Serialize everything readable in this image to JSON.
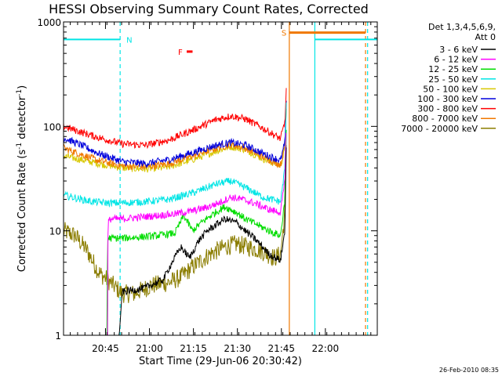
{
  "chart_data": {
    "type": "line",
    "title": "HESSI Observing Summary Count Rates, Corrected",
    "xlabel": "Start Time (29-Jun-06 20:30:42)",
    "ylabel_main": "Corrected Count Rate (s",
    "ylabel_sup1": "-1",
    "ylabel_mid": " detector",
    "ylabel_sup2": "-1",
    "ylabel_end": ")",
    "yscale": "log",
    "ylim": [
      1,
      1000
    ],
    "xlim_minutes": [
      0,
      107
    ],
    "x_ticks": [
      {
        "label": "20:45",
        "minutes": 14.3
      },
      {
        "label": "21:00",
        "minutes": 29.3
      },
      {
        "label": "21:15",
        "minutes": 44.3
      },
      {
        "label": "21:30",
        "minutes": 59.3
      },
      {
        "label": "21:45",
        "minutes": 74.3
      },
      {
        "label": "22:00",
        "minutes": 89.3
      }
    ],
    "y_ticks": [
      {
        "label": "1",
        "value": 1
      },
      {
        "label": "10",
        "value": 10
      },
      {
        "label": "100",
        "value": 100
      },
      {
        "label": "1000",
        "value": 1000
      }
    ],
    "legend_title": [
      "Det 1,3,4,5,6,9,",
      "Att 0"
    ],
    "legend_position": "right",
    "footer_date": "26-Feb-2010 08:35",
    "flags": [
      {
        "label": "N",
        "color": "#00e5e5",
        "bars": [
          [
            0,
            19.3
          ],
          [
            85.7,
            107
          ]
        ],
        "level": 680
      },
      {
        "label": "S",
        "color": "#f07800",
        "bars": [
          [
            77,
            103
          ]
        ],
        "level": 790
      },
      {
        "label": "F",
        "color": "#ff0000",
        "bars": [
          [
            42,
            44
          ]
        ],
        "level": 520
      }
    ],
    "vlines": [
      {
        "minutes": 19.3,
        "color": "#00e5e5",
        "style": "dashed"
      },
      {
        "minutes": 77.0,
        "color": "#f07800",
        "style": "solid"
      },
      {
        "minutes": 85.7,
        "color": "#00e5e5",
        "style": "solid"
      },
      {
        "minutes": 103.0,
        "color": "#f07800",
        "style": "dashed"
      },
      {
        "minutes": 103.7,
        "color": "#00e5e5",
        "style": "dashed"
      }
    ],
    "series": [
      {
        "name": "3 - 6 keV",
        "color": "#000000",
        "x": [
          0,
          15,
          19,
          20,
          27,
          34,
          37,
          40,
          43,
          46,
          49,
          55,
          59,
          62,
          66,
          70,
          74,
          75.5,
          76
        ],
        "y": [
          1,
          1,
          1,
          2.6,
          2.8,
          3.4,
          5,
          7,
          5.5,
          8,
          10,
          13,
          12,
          10,
          8,
          6,
          5.2,
          10,
          80
        ]
      },
      {
        "name": "6 - 12 keV",
        "color": "#ff00ff",
        "x": [
          15,
          15.2,
          16,
          20,
          26,
          32,
          38,
          41,
          44,
          48,
          53,
          57,
          61,
          66,
          70,
          74,
          75.5,
          76
        ],
        "y": [
          1,
          12,
          13,
          13,
          13.5,
          14,
          14.5,
          15,
          15.5,
          16.5,
          18.5,
          21,
          20,
          18,
          16,
          15,
          30,
          150
        ]
      },
      {
        "name": "12 - 25 keV",
        "color": "#00dd00",
        "x": [
          0,
          14.8,
          15,
          20,
          26,
          32,
          38,
          41,
          44,
          47,
          51,
          55,
          59,
          62,
          66,
          70,
          74,
          75.5,
          76
        ],
        "y": [
          1,
          1,
          8.5,
          8.5,
          8.7,
          9,
          9.5,
          14,
          10,
          12,
          14.5,
          17,
          15,
          13,
          11.5,
          10,
          9,
          20,
          110
        ]
      },
      {
        "name": "25 - 50 keV",
        "color": "#00e5e5",
        "x": [
          0,
          6,
          10,
          15,
          20,
          28,
          36,
          44,
          52,
          57,
          62,
          68,
          74,
          75.5,
          76
        ],
        "y": [
          22,
          20,
          19,
          18.5,
          18.5,
          19,
          20,
          23,
          28,
          30,
          26,
          21,
          19,
          40,
          200
        ]
      },
      {
        "name": "50 - 100 keV",
        "color": "#d8c800",
        "x": [
          0,
          6,
          12,
          20,
          28,
          36,
          44,
          52,
          57,
          62,
          68,
          74,
          75.5,
          76
        ],
        "y": [
          52,
          48,
          44,
          40,
          39,
          41,
          48,
          58,
          64,
          60,
          49,
          42,
          60,
          170
        ]
      },
      {
        "name": "100 - 300 keV",
        "color": "#0000dd",
        "x": [
          0,
          6,
          12,
          20,
          28,
          36,
          44,
          52,
          57,
          62,
          68,
          74,
          75.5,
          76
        ],
        "y": [
          78,
          66,
          55,
          46,
          44,
          48,
          56,
          66,
          70,
          66,
          55,
          47,
          70,
          180
        ]
      },
      {
        "name": "300 - 800 keV",
        "color": "#ff0000",
        "x": [
          0,
          6,
          12,
          20,
          28,
          36,
          44,
          52,
          57,
          62,
          68,
          74,
          75.5,
          76
        ],
        "y": [
          100,
          88,
          78,
          68,
          66,
          74,
          92,
          116,
          126,
          118,
          96,
          76,
          110,
          230
        ]
      },
      {
        "name": "800 - 7000 keV",
        "color": "#f07800",
        "x": [
          0,
          6,
          12,
          20,
          28,
          36,
          44,
          52,
          57,
          62,
          68,
          74,
          75.5,
          76
        ],
        "y": [
          62,
          54,
          47,
          42,
          41,
          44,
          52,
          62,
          67,
          62,
          51,
          43,
          65,
          160
        ]
      },
      {
        "name": "7000 - 20000 keV",
        "color": "#8b7d00",
        "x": [
          0,
          4,
          8,
          12,
          16,
          20,
          24,
          30,
          36,
          40,
          44,
          50,
          55,
          59,
          63,
          67,
          72,
          74,
          75.5,
          76
        ],
        "y": [
          10,
          9,
          6.5,
          4,
          3.2,
          2.5,
          2.5,
          3,
          3.2,
          3.6,
          4.5,
          6,
          7,
          7.5,
          7,
          6.5,
          5.5,
          6,
          15,
          80
        ]
      }
    ]
  }
}
